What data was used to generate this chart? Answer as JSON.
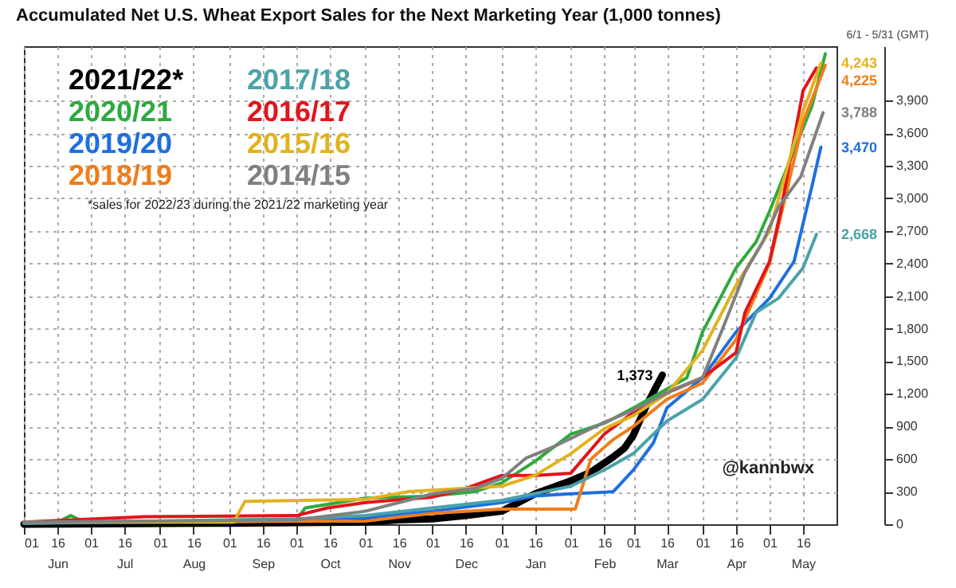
{
  "chart_data": {
    "type": "line",
    "title": "Accumulated Net U.S. Wheat Export Sales for the Next Marketing Year (1,000 tonnes)",
    "annotations": [
      "*sales for 2022/23 during the 2021/22 marketing year",
      "6/1 - 5/31 (GMT)",
      "@kannbwx"
    ],
    "xlim": [
      "2021-06-01",
      "2022-05-31"
    ],
    "xticks": [
      {
        "value": "2021-06-01",
        "label": "01"
      },
      {
        "value": "2021-06-16",
        "label": "16\nJun"
      },
      {
        "value": "2021-07-01",
        "label": "01"
      },
      {
        "value": "2021-07-16",
        "label": "16\nJul"
      },
      {
        "value": "2021-08-01",
        "label": "01"
      },
      {
        "value": "2021-08-16",
        "label": "16\nAug"
      },
      {
        "value": "2021-09-01",
        "label": "01"
      },
      {
        "value": "2021-09-16",
        "label": "16\nSep"
      },
      {
        "value": "2021-10-01",
        "label": "01"
      },
      {
        "value": "2021-10-16",
        "label": "16\nOct"
      },
      {
        "value": "2021-11-01",
        "label": "01"
      },
      {
        "value": "2021-11-16",
        "label": "16\nNov"
      },
      {
        "value": "2021-12-01",
        "label": "01"
      },
      {
        "value": "2021-12-16",
        "label": "16\nDec"
      },
      {
        "value": "2022-01-01",
        "label": "01"
      },
      {
        "value": "2022-01-16",
        "label": "16\nJan"
      },
      {
        "value": "2022-02-01",
        "label": "01"
      },
      {
        "value": "2022-02-16",
        "label": "16\nFeb"
      },
      {
        "value": "2022-03-01",
        "label": "01"
      },
      {
        "value": "2022-03-16",
        "label": "16\nMar"
      },
      {
        "value": "2022-04-01",
        "label": "01"
      },
      {
        "value": "2022-04-16",
        "label": "16\nApr"
      },
      {
        "value": "2022-05-01",
        "label": "01"
      },
      {
        "value": "2022-05-16",
        "label": "16\nMay"
      }
    ],
    "ylim": [
      0,
      4400
    ],
    "yticks": [
      0,
      300,
      600,
      900,
      {
        "value": 1200,
        "label": "1,200"
      },
      {
        "value": 1500,
        "label": "1,500"
      },
      {
        "value": 1800,
        "label": "1,800"
      },
      {
        "value": 2100,
        "label": "2,100"
      },
      {
        "value": 2400,
        "label": "2,400"
      },
      {
        "value": 2700,
        "label": "2,700"
      },
      {
        "value": 3000,
        "label": "3,000"
      },
      {
        "value": 3300,
        "label": "3,300"
      },
      {
        "value": 3600,
        "label": "3,600"
      },
      {
        "value": 3900,
        "label": "3,900"
      }
    ],
    "grid": true,
    "legend": "top left",
    "marker": "none",
    "series": [
      {
        "name": "2021/22*",
        "color": "#000000",
        "x": [
          "2021-06-01",
          "2021-09-01",
          "2021-11-01",
          "2021-11-16",
          "2021-12-01",
          "2021-12-16",
          "2022-01-01",
          "2022-01-16",
          "2022-02-01",
          "2022-02-10",
          "2022-02-20",
          "2022-02-25",
          "2022-03-01",
          "2022-03-07",
          "2022-03-14"
        ],
        "values": [
          0,
          10,
          20,
          40,
          50,
          80,
          120,
          280,
          400,
          480,
          620,
          700,
          820,
          1100,
          1373
        ],
        "value_labels": [
          null,
          null,
          null,
          null,
          null,
          null,
          null,
          null,
          null,
          null,
          null,
          null,
          null,
          null,
          "1,373"
        ]
      },
      {
        "name": "2020/21",
        "color": "#2eaa3f",
        "x": [
          "2021-06-01",
          "2021-06-16",
          "2021-06-22",
          "2021-06-28",
          "2021-09-01",
          "2021-10-01",
          "2021-10-05",
          "2021-10-20",
          "2021-11-01",
          "2021-12-01",
          "2021-12-20",
          "2022-01-01",
          "2022-01-16",
          "2022-02-01",
          "2022-02-16",
          "2022-03-01",
          "2022-03-25",
          "2022-04-01",
          "2022-04-16",
          "2022-04-25",
          "2022-05-01",
          "2022-05-10",
          "2022-05-20",
          "2022-05-26"
        ],
        "values": [
          20,
          20,
          80,
          20,
          20,
          40,
          150,
          200,
          240,
          260,
          300,
          380,
          580,
          830,
          930,
          1070,
          1350,
          1770,
          2360,
          2600,
          2880,
          3340,
          3850,
          4330
        ]
      },
      {
        "name": "2019/20",
        "color": "#1e6fe0",
        "x": [
          "2021-06-01",
          "2021-10-01",
          "2021-11-01",
          "2021-12-01",
          "2022-01-01",
          "2022-01-16",
          "2022-02-01",
          "2022-02-20",
          "2022-03-01",
          "2022-03-10",
          "2022-03-16",
          "2022-04-01",
          "2022-04-16",
          "2022-05-01",
          "2022-05-12",
          "2022-05-20",
          "2022-05-24"
        ],
        "values": [
          10,
          30,
          60,
          120,
          200,
          260,
          280,
          300,
          500,
          750,
          1070,
          1350,
          1770,
          2080,
          2420,
          3110,
          3470
        ],
        "value_labels": [
          null,
          null,
          null,
          null,
          null,
          null,
          null,
          null,
          null,
          null,
          null,
          null,
          null,
          null,
          null,
          null,
          "3,470"
        ]
      },
      {
        "name": "2018/19",
        "color": "#f07d1a",
        "x": [
          "2021-06-01",
          "2021-11-01",
          "2021-12-01",
          "2022-01-01",
          "2022-02-03",
          "2022-02-10",
          "2022-02-20",
          "2022-03-01",
          "2022-03-16",
          "2022-04-01",
          "2022-04-16",
          "2022-05-01",
          "2022-05-16",
          "2022-05-26"
        ],
        "values": [
          20,
          30,
          100,
          140,
          140,
          600,
          780,
          900,
          1150,
          1300,
          1700,
          2400,
          3700,
          4225
        ],
        "value_labels": [
          null,
          null,
          null,
          null,
          null,
          null,
          null,
          null,
          null,
          null,
          null,
          null,
          null,
          "4,225"
        ]
      },
      {
        "name": "2017/18",
        "color": "#4aa3a8",
        "x": [
          "2021-06-01",
          "2021-10-01",
          "2021-11-01",
          "2021-12-01",
          "2022-01-01",
          "2022-02-01",
          "2022-02-16",
          "2022-03-01",
          "2022-03-16",
          "2022-04-01",
          "2022-04-16",
          "2022-04-25",
          "2022-05-05",
          "2022-05-16",
          "2022-05-22"
        ],
        "values": [
          10,
          50,
          80,
          150,
          220,
          350,
          500,
          650,
          950,
          1150,
          1530,
          1950,
          2080,
          2360,
          2668
        ],
        "value_labels": [
          null,
          null,
          null,
          null,
          null,
          null,
          null,
          null,
          null,
          null,
          null,
          null,
          null,
          null,
          "2,668"
        ]
      },
      {
        "name": "2016/17",
        "color": "#e3141b",
        "x": [
          "2021-06-01",
          "2021-07-25",
          "2021-10-01",
          "2021-10-15",
          "2021-11-01",
          "2021-12-01",
          "2021-12-16",
          "2022-01-01",
          "2022-01-16",
          "2022-02-01",
          "2022-02-16",
          "2022-03-01",
          "2022-03-15",
          "2022-04-01",
          "2022-04-16",
          "2022-04-20",
          "2022-05-01",
          "2022-05-06",
          "2022-05-16",
          "2022-05-22"
        ],
        "values": [
          20,
          70,
          80,
          150,
          200,
          250,
          330,
          450,
          450,
          470,
          830,
          1030,
          1200,
          1350,
          1580,
          1950,
          2420,
          2880,
          3990,
          4200
        ]
      },
      {
        "name": "2015/16",
        "color": "#e2b21e",
        "x": [
          "2021-06-01",
          "2021-09-03",
          "2021-09-08",
          "2021-11-01",
          "2021-11-20",
          "2022-01-01",
          "2022-01-16",
          "2022-02-01",
          "2022-02-16",
          "2022-03-01",
          "2022-03-16",
          "2022-04-01",
          "2022-04-16",
          "2022-05-01",
          "2022-05-16",
          "2022-05-24"
        ],
        "values": [
          20,
          20,
          210,
          230,
          300,
          350,
          450,
          650,
          880,
          1000,
          1200,
          1600,
          2200,
          2700,
          3800,
          4243
        ],
        "value_labels": [
          null,
          null,
          null,
          null,
          null,
          null,
          null,
          null,
          null,
          null,
          null,
          null,
          null,
          null,
          null,
          "4,243"
        ]
      },
      {
        "name": "2014/15",
        "color": "#808080",
        "x": [
          "2021-06-01",
          "2021-10-01",
          "2021-11-01",
          "2021-11-16",
          "2021-12-01",
          "2021-12-20",
          "2022-01-01",
          "2022-01-12",
          "2022-01-25",
          "2022-02-15",
          "2022-03-01",
          "2022-03-20",
          "2022-04-01",
          "2022-04-10",
          "2022-04-20",
          "2022-04-28",
          "2022-05-05",
          "2022-05-15",
          "2022-05-25"
        ],
        "values": [
          20,
          40,
          120,
          200,
          280,
          330,
          420,
          610,
          720,
          930,
          1050,
          1250,
          1350,
          1800,
          2320,
          2600,
          2920,
          3200,
          3788
        ],
        "value_labels": [
          null,
          null,
          null,
          null,
          null,
          null,
          null,
          null,
          null,
          null,
          null,
          null,
          null,
          null,
          null,
          null,
          null,
          null,
          "3,788"
        ]
      }
    ]
  }
}
